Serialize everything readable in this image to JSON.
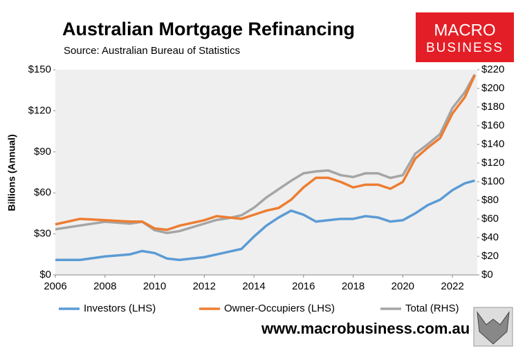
{
  "chart_data": {
    "type": "line",
    "title": "Australian Mortgage Refinancing",
    "subtitle": "Source: Australian Bureau of Statistics",
    "brand": [
      "MACRO",
      "BUSINESS"
    ],
    "website": "www.macrobusiness.com.au",
    "ylabel": "Billions (Annual)",
    "x": [
      2006,
      2007,
      2008,
      2009,
      2009.5,
      2010,
      2010.5,
      2011,
      2012,
      2012.5,
      2013,
      2013.5,
      2014,
      2014.5,
      2015,
      2015.5,
      2016,
      2016.5,
      2017,
      2017.5,
      2018,
      2018.5,
      2019,
      2019.5,
      2020,
      2020.5,
      2021,
      2021.5,
      2022,
      2022.5,
      2022.9
    ],
    "xlim": [
      2006,
      2023
    ],
    "xticks": [
      2006,
      2008,
      2010,
      2012,
      2014,
      2016,
      2018,
      2020,
      2022
    ],
    "ylim": [
      0,
      150
    ],
    "yticks": [
      {
        "value": 0,
        "label": "$0"
      },
      {
        "value": 30,
        "label": "$30"
      },
      {
        "value": 60,
        "label": "$60"
      },
      {
        "value": 90,
        "label": "$90"
      },
      {
        "value": 120,
        "label": "$120"
      },
      {
        "value": 150,
        "label": "$150"
      }
    ],
    "y2lim": [
      0,
      220
    ],
    "y2ticks": [
      {
        "value": 0,
        "label": "$0"
      },
      {
        "value": 20,
        "label": "$20"
      },
      {
        "value": 40,
        "label": "$40"
      },
      {
        "value": 60,
        "label": "$60"
      },
      {
        "value": 80,
        "label": "$80"
      },
      {
        "value": 100,
        "label": "$100"
      },
      {
        "value": 120,
        "label": "$120"
      },
      {
        "value": 140,
        "label": "$140"
      },
      {
        "value": 160,
        "label": "$160"
      },
      {
        "value": 180,
        "label": "$180"
      },
      {
        "value": 200,
        "label": "$200"
      },
      {
        "value": 220,
        "label": "$220"
      }
    ],
    "series": [
      {
        "name": "Investors (LHS)",
        "color": "#5b9bd5",
        "values": [
          11,
          11,
          13.5,
          15,
          17.5,
          16,
          12,
          11,
          13,
          15,
          17,
          19,
          28,
          36,
          42,
          47,
          44,
          39,
          40,
          41,
          41,
          43,
          42,
          39,
          40,
          45,
          51,
          55,
          62,
          67,
          69
        ]
      },
      {
        "name": "Owner-Occupiers (LHS)",
        "color": "#ed7d31",
        "values": [
          37,
          41,
          40,
          39,
          39,
          34,
          33,
          36,
          40,
          43,
          42,
          41,
          44,
          47,
          49,
          55,
          64,
          71,
          71,
          68,
          64,
          66,
          66,
          63,
          68,
          85,
          93,
          100,
          118,
          130,
          146
        ]
      },
      {
        "name": "Total (RHS)",
        "color": "#a5a5a5",
        "axis": "y2",
        "values": [
          49,
          53,
          57,
          55,
          57,
          48,
          45,
          47,
          55,
          59,
          61,
          64,
          72,
          83,
          92,
          101,
          109,
          111,
          112,
          107,
          105,
          109,
          109,
          104,
          107,
          130,
          140,
          151,
          179,
          196,
          215
        ]
      }
    ]
  }
}
